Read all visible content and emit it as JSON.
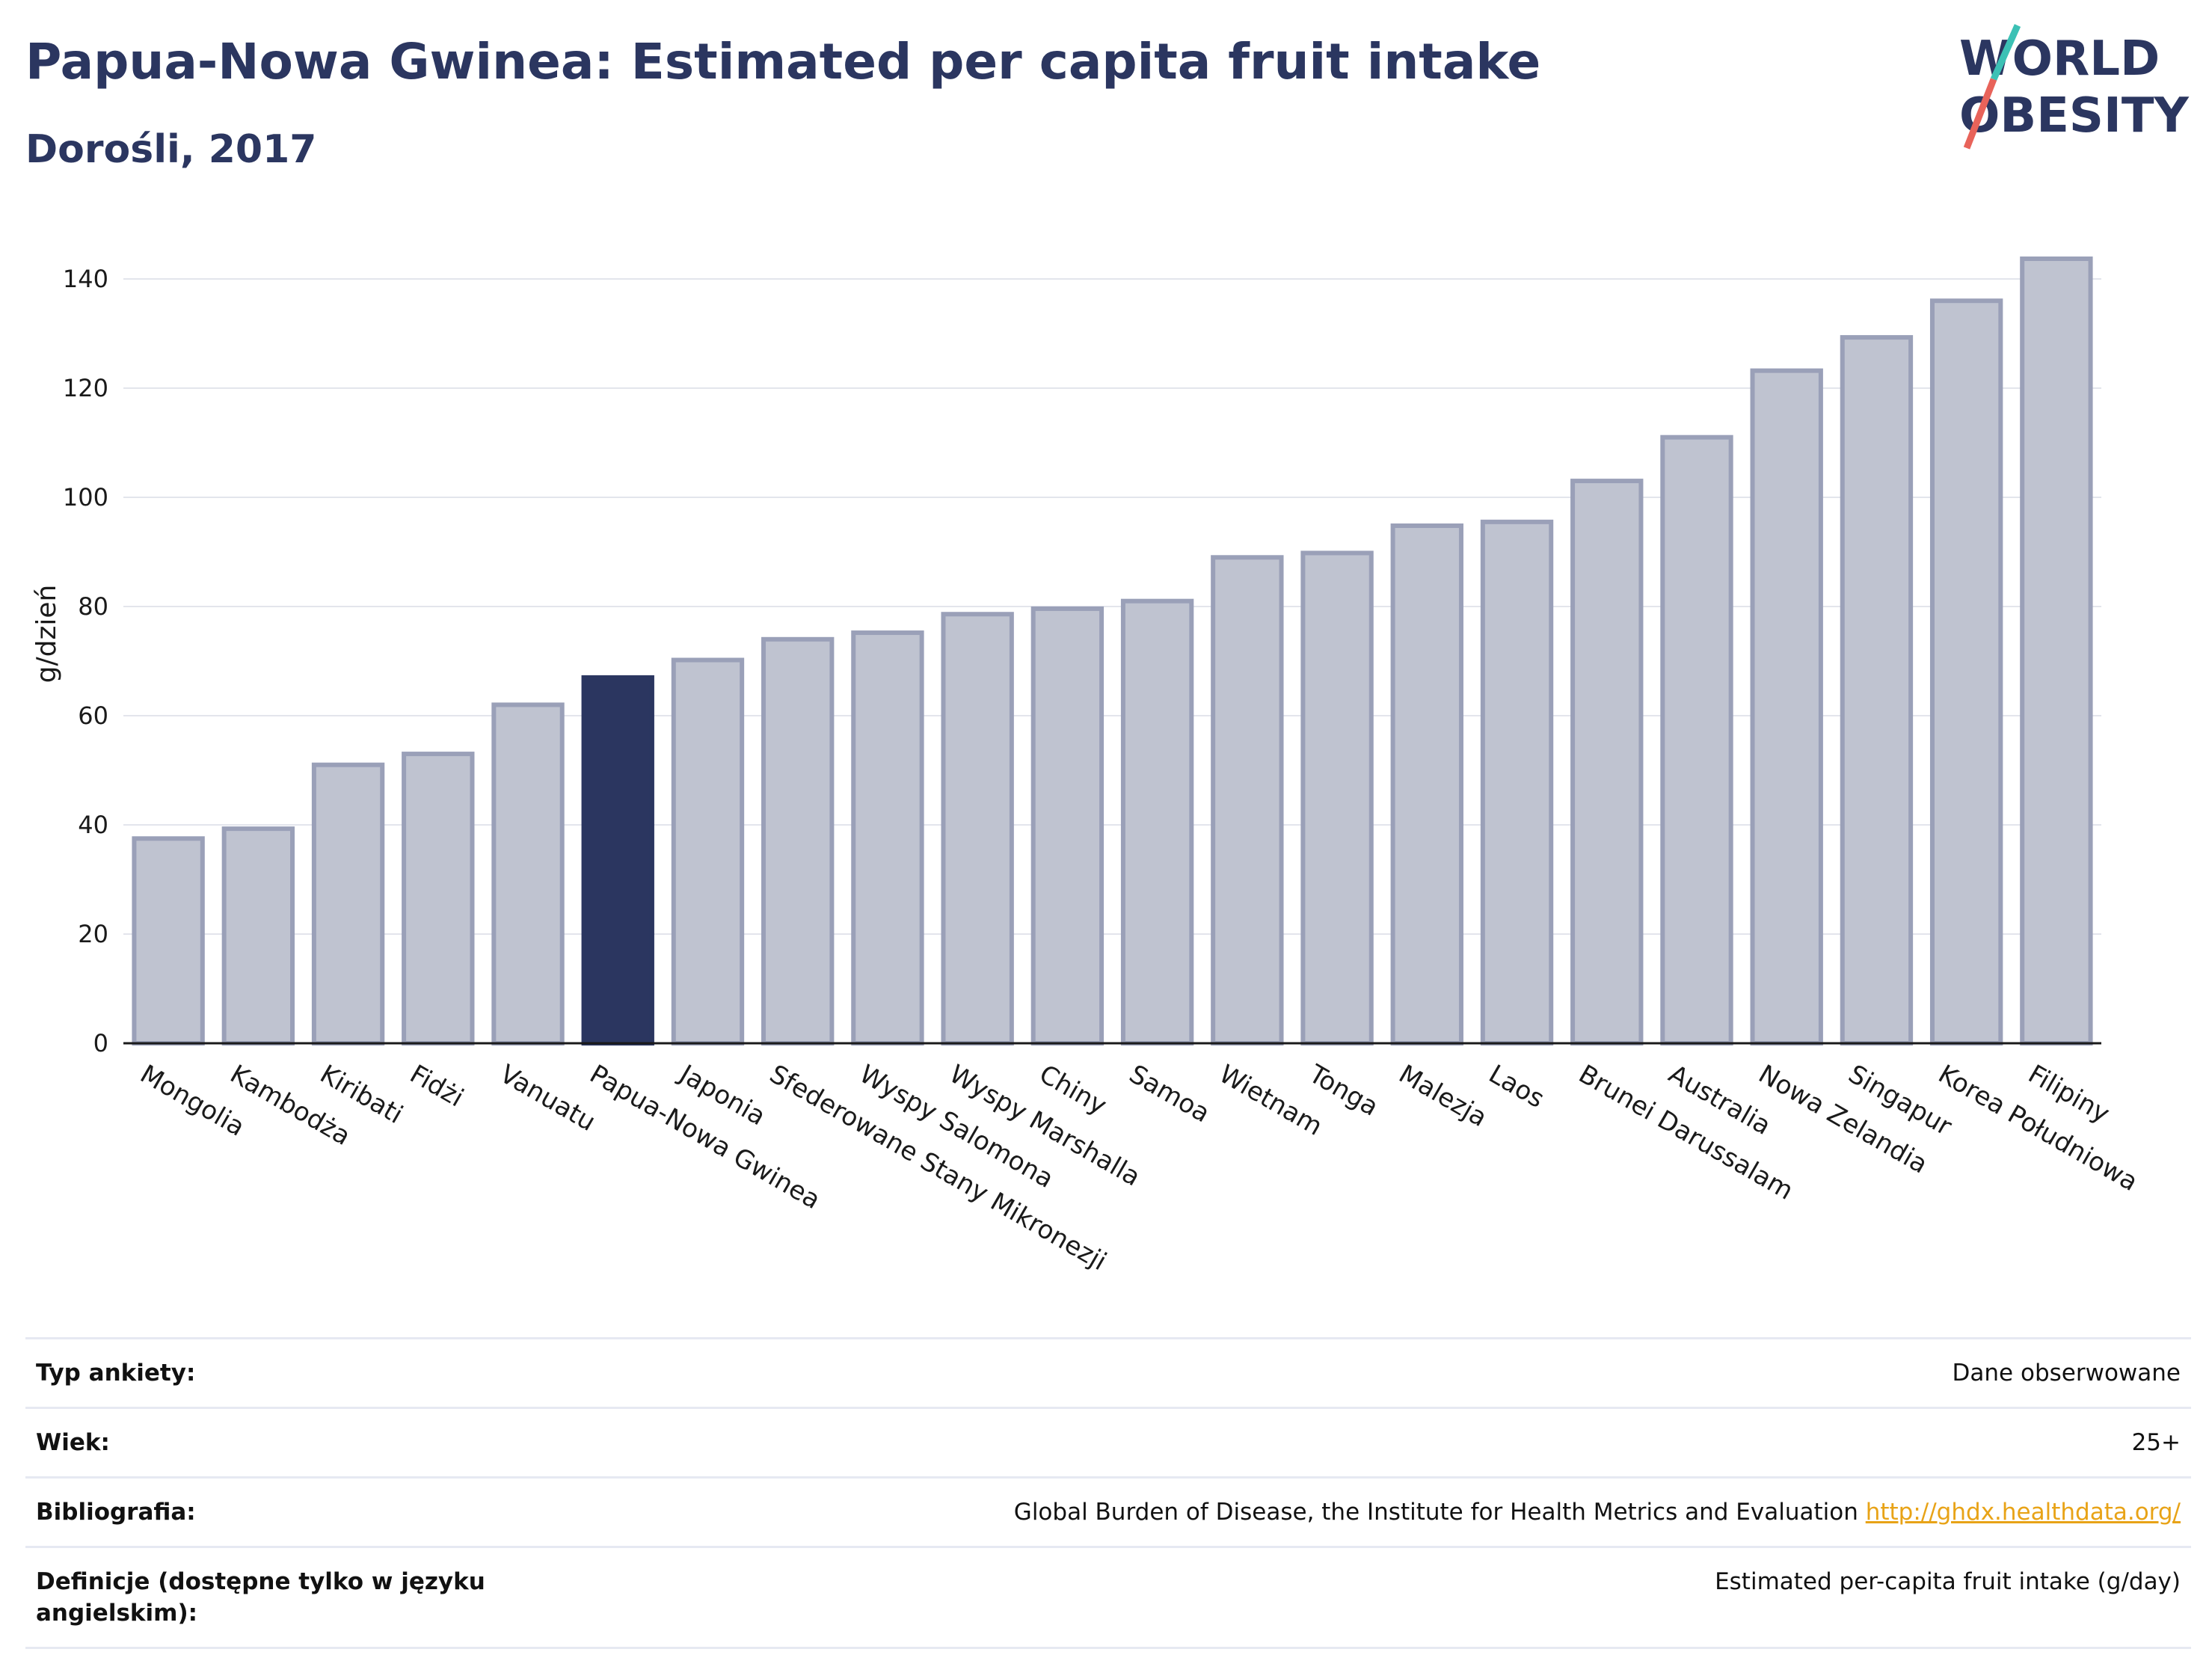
{
  "header": {
    "title": "Papua-Nowa Gwinea: Estimated per capita fruit intake",
    "subtitle": "Dorośli, 2017"
  },
  "logo": {
    "line1": "WORLD",
    "line2": "OBESITY"
  },
  "chart_data": {
    "type": "bar",
    "title": "Papua-Nowa Gwinea: Estimated per capita fruit intake",
    "subtitle": "Dorośli, 2017",
    "xlabel": "",
    "ylabel": "g/dzień",
    "ylim": [
      0,
      150
    ],
    "yticks": [
      0,
      20,
      40,
      60,
      80,
      100,
      120,
      140
    ],
    "grid": true,
    "highlight": "Papua-Nowa Gwinea",
    "colors": {
      "bar": "#bfc3d0",
      "bar_edge": "#9aa0b8",
      "highlight": "#2b3660"
    },
    "categories": [
      "Mongolia",
      "Kambodża",
      "Kiribati",
      "Fidżi",
      "Vanuatu",
      "Papua-Nowa Gwinea",
      "Japonia",
      "Sfederowane Stany Mikronezji",
      "Wyspy Salomona",
      "Wyspy Marshalla",
      "Chiny",
      "Samoa",
      "Wietnam",
      "Tonga",
      "Malezja",
      "Laos",
      "Brunei Darussalam",
      "Australia",
      "Nowa Zelandia",
      "Singapur",
      "Korea Południowa",
      "Filipiny"
    ],
    "values": [
      37.5,
      39.3,
      51,
      53,
      62,
      67,
      70.2,
      74,
      75.2,
      78.6,
      79.6,
      81,
      89,
      89.8,
      94.8,
      95.5,
      103,
      111,
      123.2,
      129.3,
      136,
      143.7
    ]
  },
  "info": {
    "rows": [
      {
        "key": "Typ ankiety:",
        "value": "Dane obserwowane"
      },
      {
        "key": "Wiek:",
        "value": "25+"
      },
      {
        "key": "Bibliografia:",
        "value": "Global Burden of Disease, the Institute for Health Metrics and Evaluation",
        "link": "http://ghdx.healthdata.org/"
      },
      {
        "key": "Definicje (dostępne tylko w języku angielskim):",
        "value": "Estimated per-capita fruit intake (g/day)"
      }
    ]
  }
}
